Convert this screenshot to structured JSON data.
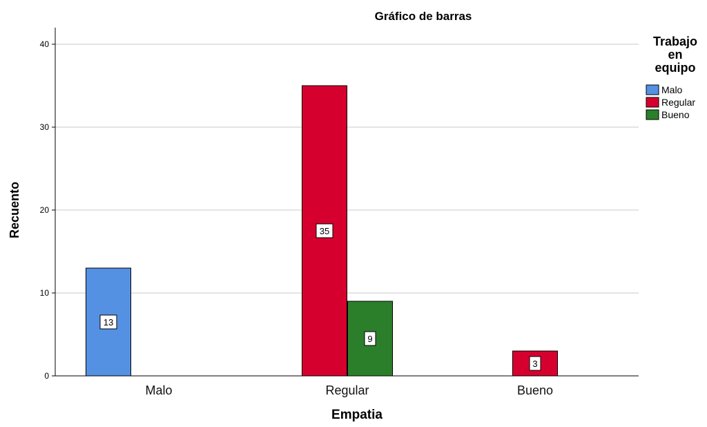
{
  "chart_data": {
    "type": "bar",
    "title": "Gráfico de barras",
    "xlabel": "Empatia",
    "ylabel": "Recuento",
    "categories": [
      "Malo",
      "Regular",
      "Bueno"
    ],
    "series": [
      {
        "name": "Malo",
        "color": "#5591e3",
        "values": [
          13,
          0,
          0
        ]
      },
      {
        "name": "Regular",
        "color": "#d6002e",
        "values": [
          0,
          35,
          3
        ]
      },
      {
        "name": "Bueno",
        "color": "#2b7f2b",
        "values": [
          0,
          9,
          0
        ]
      }
    ],
    "ylim": [
      0,
      42
    ],
    "yticks": [
      0,
      10,
      20,
      30,
      40
    ],
    "grid": true,
    "legend": {
      "title_lines": [
        "Trabajo",
        "en",
        "equipo"
      ],
      "placement": "right"
    }
  }
}
